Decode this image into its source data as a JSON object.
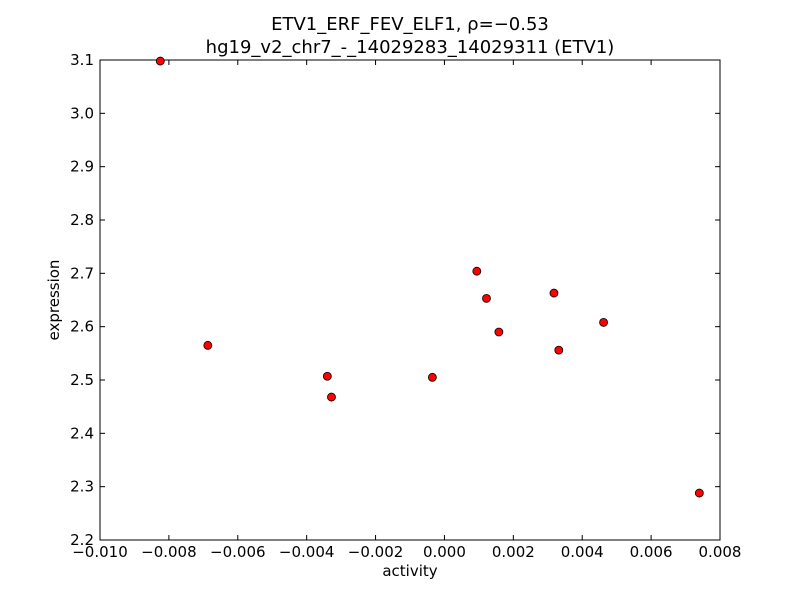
{
  "chart_data": {
    "type": "scatter",
    "title_line1": "ETV1_ERF_FEV_ELF1, ρ=−0.53",
    "title_line2": "hg19_v2_chr7_-_14029283_14029311 (ETV1)",
    "xlabel": "activity",
    "ylabel": "expression",
    "xlim": [
      -0.01,
      0.008
    ],
    "ylim": [
      2.2,
      3.1
    ],
    "x_ticks": [
      -0.01,
      -0.008,
      -0.006,
      -0.004,
      -0.002,
      0.0,
      0.002,
      0.004,
      0.006,
      0.008
    ],
    "x_tick_labels": [
      "−0.010",
      "−0.008",
      "−0.006",
      "−0.004",
      "−0.002",
      "0.000",
      "0.002",
      "0.004",
      "0.006",
      "0.008"
    ],
    "y_ticks": [
      2.2,
      2.3,
      2.4,
      2.5,
      2.6,
      2.7,
      2.8,
      2.9,
      3.0,
      3.1
    ],
    "y_tick_labels": [
      "2.2",
      "2.3",
      "2.4",
      "2.5",
      "2.6",
      "2.7",
      "2.8",
      "2.9",
      "3.0",
      "3.1"
    ],
    "grid": false,
    "marker_color": "#ff0000",
    "marker_edge_color": "#000000",
    "points": [
      {
        "x": -0.00825,
        "y": 3.098
      },
      {
        "x": -0.00687,
        "y": 2.565
      },
      {
        "x": -0.0034,
        "y": 2.507
      },
      {
        "x": -0.00328,
        "y": 2.468
      },
      {
        "x": -0.00035,
        "y": 2.505
      },
      {
        "x": 0.00094,
        "y": 2.704
      },
      {
        "x": 0.00122,
        "y": 2.653
      },
      {
        "x": 0.00158,
        "y": 2.59
      },
      {
        "x": 0.00318,
        "y": 2.663
      },
      {
        "x": 0.00332,
        "y": 2.556
      },
      {
        "x": 0.00462,
        "y": 2.608
      },
      {
        "x": 0.0074,
        "y": 2.288
      }
    ]
  }
}
